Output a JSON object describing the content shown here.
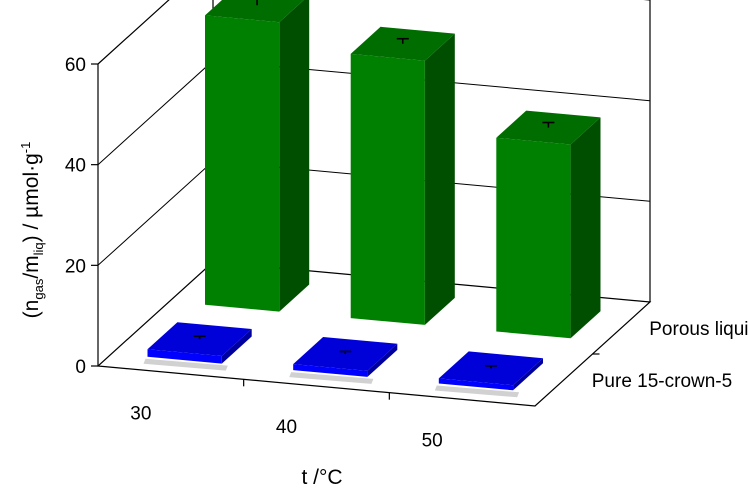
{
  "chart_data": {
    "type": "bar",
    "style": "3d-clustered-depth",
    "categories": [
      "30",
      "40",
      "50"
    ],
    "xlabel": "t /°C",
    "ylabel": {
      "prefix": "(n",
      "sub1": "gas",
      "mid": "/m",
      "sub2": "liq",
      "suffix": ") / µmol·g",
      "sup": "-1"
    },
    "ylim": [
      0,
      60
    ],
    "yticks": [
      0,
      20,
      40,
      60
    ],
    "grid": true,
    "series": [
      {
        "name": "Porous liquid",
        "values": [
          57.5,
          52.5,
          38.5
        ],
        "errors": [
          1.3,
          1.0,
          1.0
        ],
        "color": "#008000"
      },
      {
        "name": "Pure 15-crown-5",
        "values": [
          1.5,
          1.2,
          1.0
        ],
        "errors": [
          0.6,
          0.5,
          0.5
        ],
        "color": "#0000ff"
      }
    ]
  }
}
